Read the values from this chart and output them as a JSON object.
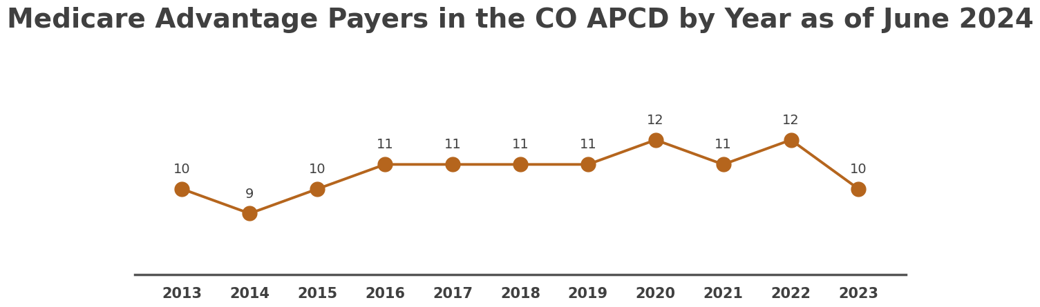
{
  "title": "Medicare Advantage Payers in the CO APCD by Year as of June 2024",
  "years": [
    2013,
    2014,
    2015,
    2016,
    2017,
    2018,
    2019,
    2020,
    2021,
    2022,
    2023
  ],
  "values": [
    10,
    9,
    10,
    11,
    11,
    11,
    11,
    12,
    11,
    12,
    10
  ],
  "line_color": "#B5651D",
  "marker_color": "#B5651D",
  "background_color": "#ffffff",
  "title_fontsize": 28,
  "title_color": "#404040",
  "label_fontsize": 14,
  "label_color": "#404040",
  "tick_fontsize": 15,
  "tick_color": "#404040",
  "line_width": 2.8,
  "marker_size": 15,
  "ylim": [
    6.5,
    15.5
  ],
  "xlim": [
    2012.3,
    2023.7
  ],
  "spine_color": "#555555",
  "spine_linewidth": 2.5
}
